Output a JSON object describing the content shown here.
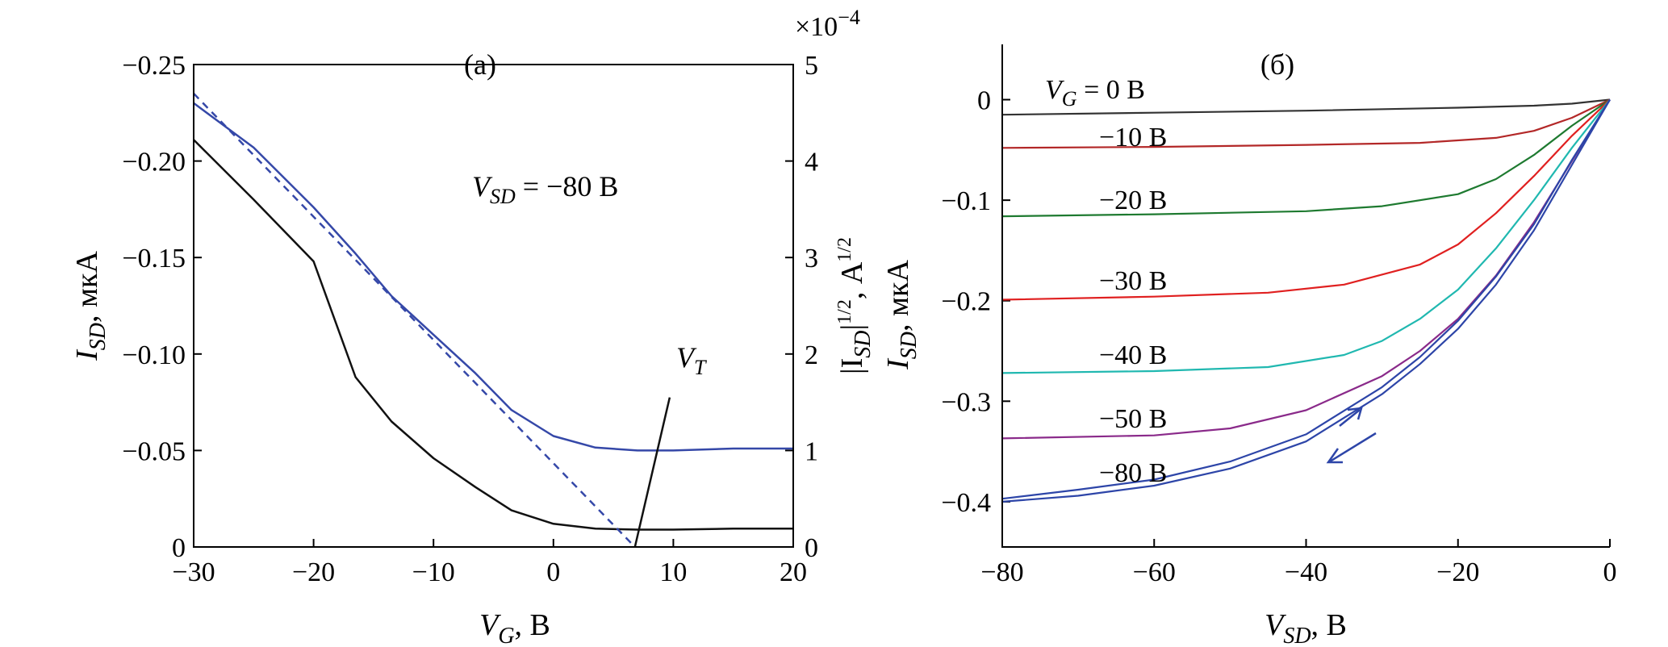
{
  "chart_data": [
    {
      "panel_label": "(a)",
      "type": "line",
      "xlabel": {
        "main": "V",
        "sub": "G",
        "unit": ", В"
      },
      "ylabel": {
        "main": "I",
        "sub": "SD",
        "unit": ", мкА"
      },
      "y2label": {
        "open": "|I",
        "sub": "SD",
        "close": "|",
        "sup1": "1/2",
        "unit": ", А",
        "sup2": "1/2"
      },
      "y2_multiplier": {
        "base": "×10",
        "exp": "−4"
      },
      "annotation": {
        "main": "V",
        "sub": "SD",
        "rest": " = −80 В"
      },
      "threshold_label": {
        "main": "V",
        "sub": "T"
      },
      "xlim": [
        -30,
        20
      ],
      "ylim": [
        0,
        -0.25
      ],
      "y2lim": [
        0,
        5
      ],
      "xticks": [
        "−30",
        "−20",
        "−10",
        "0",
        "10",
        "20"
      ],
      "xtick_values": [
        -30,
        -20,
        -10,
        0,
        10,
        20
      ],
      "yticks": [
        "0",
        "−0.05",
        "−0.10",
        "−0.15",
        "−0.20",
        "−0.25"
      ],
      "ytick_values": [
        0,
        -0.05,
        -0.1,
        -0.15,
        -0.2,
        -0.25
      ],
      "y2ticks": [
        "0",
        "1",
        "2",
        "3",
        "4",
        "5"
      ],
      "y2tick_values": [
        0,
        1,
        2,
        3,
        4,
        5
      ],
      "series": [
        {
          "axis": "left",
          "color": "#111111",
          "style": "solid",
          "x": [
            -30,
            -25,
            -20,
            -16.5,
            -13.5,
            -10,
            -6.5,
            -3.5,
            0,
            3.5,
            7,
            10,
            15,
            20
          ],
          "y": [
            -0.211,
            -0.18,
            -0.148,
            -0.088,
            -0.065,
            -0.046,
            -0.031,
            -0.019,
            -0.012,
            -0.0095,
            -0.009,
            -0.009,
            -0.0095,
            -0.0095
          ]
        },
        {
          "axis": "right",
          "color": "#3548a8",
          "style": "solid",
          "x": [
            -30,
            -25,
            -20,
            -16.5,
            -13.5,
            -10,
            -6.5,
            -3.5,
            0,
            3.5,
            7,
            10,
            15,
            20
          ],
          "y": [
            4.6,
            4.14,
            3.52,
            3.04,
            2.6,
            2.2,
            1.8,
            1.42,
            1.15,
            1.03,
            1.0,
            1.0,
            1.02,
            1.02
          ]
        },
        {
          "axis": "right",
          "color": "#3548a8",
          "style": "dashed",
          "x": [
            -30,
            6.8
          ],
          "y": [
            4.7,
            0
          ]
        },
        {
          "axis": "right",
          "color": "#111111",
          "style": "solid",
          "x": [
            6.8,
            9.7
          ],
          "y": [
            0,
            1.55
          ]
        }
      ]
    },
    {
      "panel_label": "(б)",
      "type": "line",
      "xlabel": {
        "main": "V",
        "sub": "SD",
        "unit": ", В"
      },
      "ylabel": {
        "main": "I",
        "sub": "SD",
        "unit": ", мкА"
      },
      "xlim": [
        -80,
        0
      ],
      "ylim": [
        -0.445,
        0.055
      ],
      "xticks": [
        "−80",
        "−60",
        "−40",
        "−20",
        "0"
      ],
      "xtick_values": [
        -80,
        -60,
        -40,
        -20,
        0
      ],
      "yticks": [
        "0",
        "−0.1",
        "−0.2",
        "−0.3",
        "−0.4"
      ],
      "ytick_values": [
        0,
        -0.1,
        -0.2,
        -0.3,
        -0.4
      ],
      "vg_label": {
        "main": "V",
        "sub": "G",
        "rest": " = 0 В"
      },
      "series": [
        {
          "name": "0 В",
          "color": "#333333",
          "x": [
            -80,
            -60,
            -40,
            -20,
            -10,
            -5,
            0
          ],
          "y": [
            -0.015,
            -0.013,
            -0.011,
            -0.008,
            -0.006,
            -0.004,
            0
          ]
        },
        {
          "name": "−10 В",
          "label": "−10 В",
          "color": "#b32828",
          "x": [
            -80,
            -60,
            -40,
            -25,
            -15,
            -10,
            -5,
            0
          ],
          "y": [
            -0.048,
            -0.047,
            -0.045,
            -0.043,
            -0.038,
            -0.031,
            -0.018,
            0
          ]
        },
        {
          "name": "−20 В",
          "label": "−20 В",
          "color": "#1e7a30",
          "x": [
            -80,
            -60,
            -40,
            -30,
            -20,
            -15,
            -10,
            -5,
            0
          ],
          "y": [
            -0.116,
            -0.114,
            -0.111,
            -0.106,
            -0.094,
            -0.079,
            -0.055,
            -0.026,
            0
          ]
        },
        {
          "name": "−30 В",
          "label": "−30 В",
          "color": "#e02020",
          "x": [
            -80,
            -60,
            -45,
            -35,
            -25,
            -20,
            -15,
            -10,
            -5,
            0
          ],
          "y": [
            -0.199,
            -0.196,
            -0.192,
            -0.184,
            -0.164,
            -0.144,
            -0.113,
            -0.076,
            -0.036,
            0
          ]
        },
        {
          "name": "−40 В",
          "label": "−40 В",
          "color": "#20b8b0",
          "x": [
            -80,
            -60,
            -45,
            -35,
            -30,
            -25,
            -20,
            -15,
            -10,
            -5,
            0
          ],
          "y": [
            -0.272,
            -0.27,
            -0.266,
            -0.254,
            -0.24,
            -0.218,
            -0.189,
            -0.148,
            -0.1,
            -0.048,
            0
          ]
        },
        {
          "name": "−50 В",
          "label": "−50 В",
          "color": "#8a2a8a",
          "x": [
            -80,
            -60,
            -50,
            -40,
            -30,
            -25,
            -20,
            -15,
            -10,
            -5,
            0
          ],
          "y": [
            -0.337,
            -0.334,
            -0.327,
            -0.309,
            -0.275,
            -0.25,
            -0.218,
            -0.175,
            -0.122,
            -0.061,
            0
          ]
        },
        {
          "name": "−80 В (прямой)",
          "label": "−80 В",
          "color": "#2d45a8",
          "x": [
            -80,
            -70,
            -60,
            -50,
            -40,
            -30,
            -25,
            -20,
            -15,
            -10,
            -5,
            0
          ],
          "y": [
            -0.4,
            -0.394,
            -0.384,
            -0.367,
            -0.34,
            -0.293,
            -0.263,
            -0.228,
            -0.184,
            -0.13,
            -0.065,
            0
          ]
        },
        {
          "name": "−80 В (обратный)",
          "color": "#2d45a8",
          "x": [
            -80,
            -70,
            -60,
            -50,
            -40,
            -30,
            -25,
            -20,
            -15,
            -10,
            -5,
            0
          ],
          "y": [
            -0.397,
            -0.388,
            -0.378,
            -0.36,
            -0.333,
            -0.286,
            -0.256,
            -0.22,
            -0.176,
            -0.124,
            -0.06,
            0
          ]
        }
      ]
    }
  ]
}
